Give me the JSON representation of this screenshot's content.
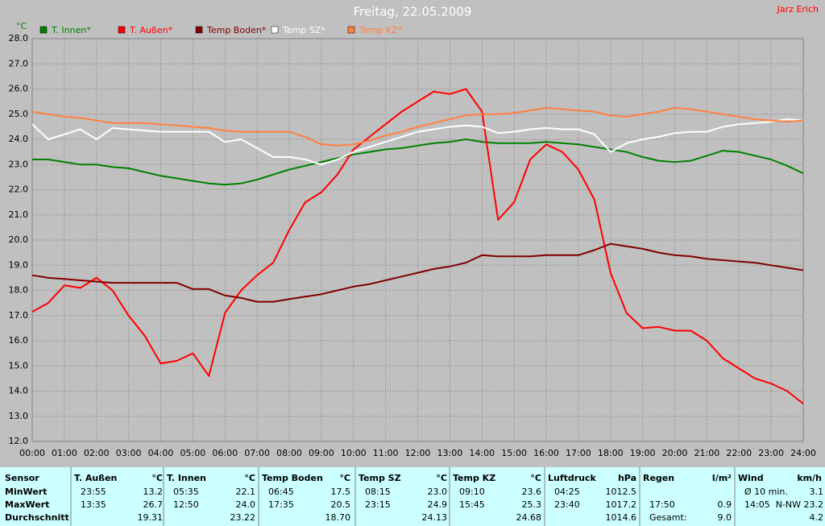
{
  "chart_data": {
    "type": "line",
    "title": "Freitag, 22.05.2009",
    "author": "Jarz Erich",
    "y_label": "°C",
    "x": [
      0,
      0.5,
      1,
      1.5,
      2,
      2.5,
      3,
      3.5,
      4,
      4.5,
      5,
      5.5,
      6,
      6.5,
      7,
      7.5,
      8,
      8.5,
      9,
      9.5,
      10,
      10.5,
      11,
      11.5,
      12,
      12.5,
      13,
      13.5,
      14,
      14.5,
      15,
      15.5,
      16,
      16.5,
      17,
      17.5,
      18,
      18.5,
      19,
      19.5,
      20,
      20.5,
      21,
      21.5,
      22,
      22.5,
      23,
      23.5,
      24
    ],
    "xlim": [
      0,
      24
    ],
    "xticks": [
      {
        "value": 0,
        "label": "00:00"
      },
      {
        "value": 1,
        "label": "01:00"
      },
      {
        "value": 2,
        "label": "02:00"
      },
      {
        "value": 3,
        "label": "03:00"
      },
      {
        "value": 4,
        "label": "04:00"
      },
      {
        "value": 5,
        "label": "05:00"
      },
      {
        "value": 6,
        "label": "06:00"
      },
      {
        "value": 7,
        "label": "07:00"
      },
      {
        "value": 8,
        "label": "08:00"
      },
      {
        "value": 9,
        "label": "09:00"
      },
      {
        "value": 10,
        "label": "10:00"
      },
      {
        "value": 11,
        "label": "11:00"
      },
      {
        "value": 12,
        "label": "12:00"
      },
      {
        "value": 13,
        "label": "13:00"
      },
      {
        "value": 14,
        "label": "14:00"
      },
      {
        "value": 15,
        "label": "15:00"
      },
      {
        "value": 16,
        "label": "16:00"
      },
      {
        "value": 17,
        "label": "17:00"
      },
      {
        "value": 18,
        "label": "18:00"
      },
      {
        "value": 19,
        "label": "19:00"
      },
      {
        "value": 20,
        "label": "20:00"
      },
      {
        "value": 21,
        "label": "21:00"
      },
      {
        "value": 22,
        "label": "22:00"
      },
      {
        "value": 23,
        "label": "23:00"
      },
      {
        "value": 24,
        "label": "24:00"
      }
    ],
    "ylim": [
      12,
      28
    ],
    "yticks": [
      {
        "value": 12,
        "label": "12.0"
      },
      {
        "value": 13,
        "label": "13.0"
      },
      {
        "value": 14,
        "label": "14.0"
      },
      {
        "value": 15,
        "label": "15.0"
      },
      {
        "value": 16,
        "label": "16.0"
      },
      {
        "value": 17,
        "label": "17.0"
      },
      {
        "value": 18,
        "label": "18.0"
      },
      {
        "value": 19,
        "label": "19.0"
      },
      {
        "value": 20,
        "label": "20.0"
      },
      {
        "value": 21,
        "label": "21.0"
      },
      {
        "value": 22,
        "label": "22.0"
      },
      {
        "value": 23,
        "label": "23.0"
      },
      {
        "value": 24,
        "label": "24.0"
      },
      {
        "value": 25,
        "label": "25.0"
      },
      {
        "value": 26,
        "label": "26.0"
      },
      {
        "value": 27,
        "label": "27.0"
      },
      {
        "value": 28,
        "label": "28.0"
      }
    ],
    "grid": true,
    "series": [
      {
        "name": "T. Innen*",
        "color": "#008000",
        "values": [
          23.2,
          23.2,
          23.1,
          23.0,
          23.0,
          22.9,
          22.85,
          22.7,
          22.55,
          22.45,
          22.35,
          22.25,
          22.2,
          22.25,
          22.4,
          22.6,
          22.8,
          22.95,
          23.1,
          23.25,
          23.4,
          23.5,
          23.6,
          23.65,
          23.75,
          23.85,
          23.9,
          24.0,
          23.9,
          23.85,
          23.85,
          23.85,
          23.9,
          23.85,
          23.8,
          23.7,
          23.6,
          23.5,
          23.3,
          23.15,
          23.1,
          23.15,
          23.35,
          23.55,
          23.5,
          23.35,
          23.2,
          22.95,
          22.65
        ]
      },
      {
        "name": "T. Außen*",
        "color": "#ff0000",
        "values": [
          17.15,
          17.5,
          18.2,
          18.1,
          18.5,
          18.0,
          17.0,
          16.2,
          15.1,
          15.2,
          15.5,
          14.6,
          17.1,
          18.0,
          18.6,
          19.1,
          20.4,
          21.5,
          21.9,
          22.6,
          23.6,
          24.1,
          24.6,
          25.1,
          25.5,
          25.9,
          25.8,
          26.0,
          25.1,
          20.8,
          21.5,
          23.2,
          23.8,
          23.5,
          22.8,
          21.6,
          18.7,
          17.1,
          16.5,
          16.55,
          16.4,
          16.4,
          16.0,
          15.3,
          14.9,
          14.5,
          14.3,
          14.0,
          13.5
        ]
      },
      {
        "name": "Temp Boden*",
        "color": "#800000",
        "values": [
          18.6,
          18.5,
          18.45,
          18.4,
          18.35,
          18.3,
          18.3,
          18.3,
          18.3,
          18.3,
          18.05,
          18.05,
          17.8,
          17.7,
          17.55,
          17.55,
          17.65,
          17.75,
          17.85,
          18.0,
          18.15,
          18.25,
          18.4,
          18.55,
          18.7,
          18.85,
          18.95,
          19.1,
          19.4,
          19.35,
          19.35,
          19.35,
          19.4,
          19.4,
          19.4,
          19.6,
          19.85,
          19.75,
          19.65,
          19.5,
          19.4,
          19.35,
          19.25,
          19.2,
          19.15,
          19.1,
          19.0,
          18.9,
          18.8
        ]
      },
      {
        "name": "Temp SZ*",
        "color": "#ffffff",
        "values": [
          24.6,
          24.0,
          24.2,
          24.4,
          24.0,
          24.45,
          24.4,
          24.35,
          24.3,
          24.3,
          24.3,
          24.3,
          23.9,
          24.0,
          23.65,
          23.3,
          23.3,
          23.2,
          23.0,
          23.2,
          23.5,
          23.7,
          23.9,
          24.1,
          24.3,
          24.4,
          24.5,
          24.55,
          24.5,
          24.25,
          24.3,
          24.4,
          24.45,
          24.4,
          24.4,
          24.2,
          23.5,
          23.85,
          24.0,
          24.1,
          24.25,
          24.3,
          24.3,
          24.5,
          24.6,
          24.65,
          24.7,
          24.8,
          24.75
        ]
      },
      {
        "name": "Temp KZ*",
        "color": "#ff8040",
        "values": [
          25.1,
          25.0,
          24.9,
          24.85,
          24.75,
          24.65,
          24.65,
          24.65,
          24.6,
          24.55,
          24.5,
          24.45,
          24.35,
          24.3,
          24.3,
          24.3,
          24.3,
          24.1,
          23.8,
          23.75,
          23.8,
          23.95,
          24.15,
          24.3,
          24.5,
          24.65,
          24.8,
          24.95,
          25.0,
          25.0,
          25.05,
          25.15,
          25.25,
          25.2,
          25.15,
          25.1,
          24.95,
          24.9,
          25.0,
          25.1,
          25.25,
          25.2,
          25.1,
          25.0,
          24.9,
          24.8,
          24.75,
          24.7,
          24.75
        ]
      }
    ]
  },
  "stats_table": {
    "row_labels": [
      "Sensor",
      "MinWert",
      "MaxWert",
      "Durchschnitt"
    ],
    "groups": [
      {
        "name": "T. Außen",
        "unit": "°C",
        "rows": [
          {
            "time": "23:55",
            "value": "13.2"
          },
          {
            "time": "13:35",
            "value": "26.7"
          },
          {
            "value": "19.31"
          }
        ]
      },
      {
        "name": "T. Innen",
        "unit": "°C",
        "rows": [
          {
            "time": "05:35",
            "value": "22.1"
          },
          {
            "time": "12:50",
            "value": "24.0"
          },
          {
            "value": "23.22"
          }
        ]
      },
      {
        "name": "Temp Boden",
        "unit": "°C",
        "rows": [
          {
            "time": "06:45",
            "value": "17.5"
          },
          {
            "time": "17:35",
            "value": "20.5"
          },
          {
            "value": "18.70"
          }
        ]
      },
      {
        "name": "Temp SZ",
        "unit": "°C",
        "rows": [
          {
            "time": "08:15",
            "value": "23.0"
          },
          {
            "time": "23:15",
            "value": "24.9"
          },
          {
            "value": "24.13"
          }
        ]
      },
      {
        "name": "Temp KZ",
        "unit": "°C",
        "rows": [
          {
            "time": "09:10",
            "value": "23.6"
          },
          {
            "time": "15:45",
            "value": "25.3"
          },
          {
            "value": "24.68"
          }
        ]
      },
      {
        "name": "Luftdruck",
        "unit": "hPa",
        "rows": [
          {
            "time": "04:25",
            "value": "1012.5"
          },
          {
            "time": "23:40",
            "value": "1017.2"
          },
          {
            "value": "1014.6"
          }
        ]
      },
      {
        "name": "Regen",
        "unit": "l/m²",
        "rows": [
          {},
          {
            "time": "17:50",
            "value": "0.9"
          },
          {
            "time": "Gesamt:",
            "value": "9.0"
          }
        ]
      },
      {
        "name": "Wind",
        "unit": "km/h",
        "rows": [
          {
            "time": "Ø 10 min.",
            "value": "3.1"
          },
          {
            "time": "14:05",
            "value": "N-NW 23.2"
          },
          {
            "value": "4.2"
          }
        ]
      }
    ]
  }
}
